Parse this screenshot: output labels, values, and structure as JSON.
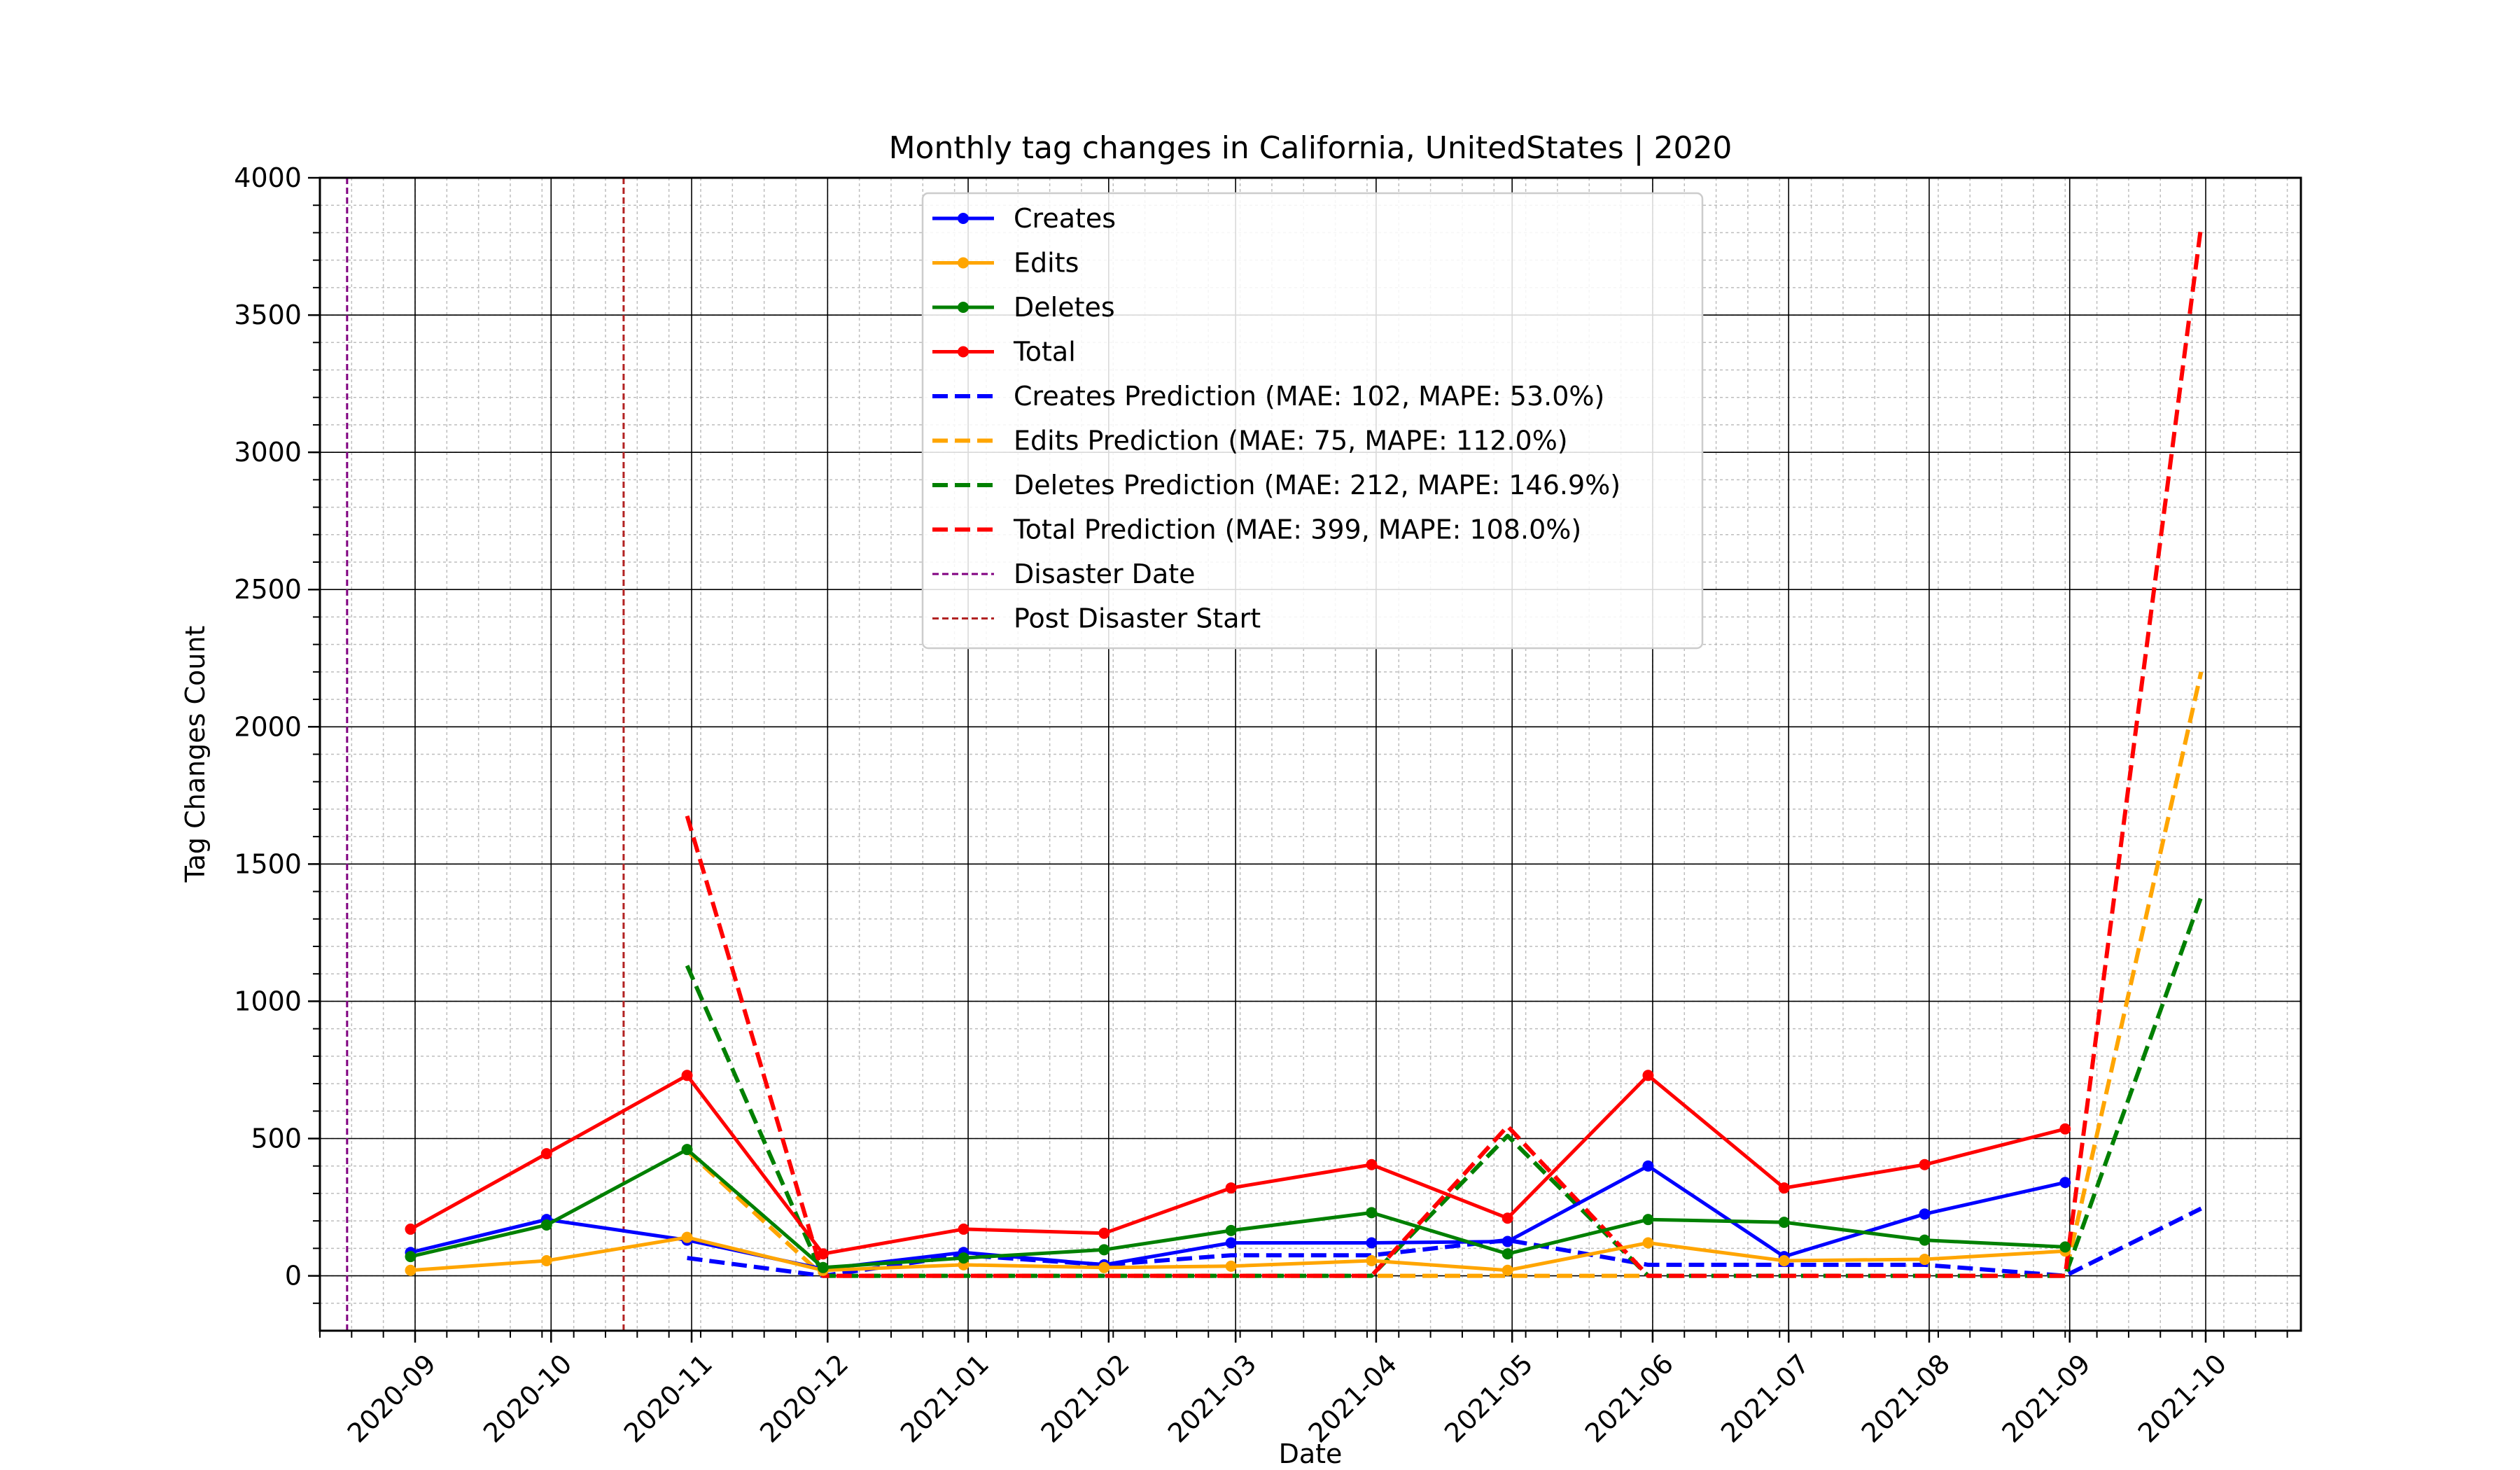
{
  "chart_data": {
    "type": "line",
    "title": "Monthly tag changes in California, UnitedStates | 2020",
    "xlabel": "Date",
    "ylabel": "Tag Changes Count",
    "xlim": [
      "2020-08-11",
      "2021-10-22"
    ],
    "ylim": [
      -200,
      4000
    ],
    "x_ticks": [
      "2020-09",
      "2020-10",
      "2020-11",
      "2020-12",
      "2021-01",
      "2021-02",
      "2021-03",
      "2021-04",
      "2021-05",
      "2021-06",
      "2021-07",
      "2021-08",
      "2021-09",
      "2021-10"
    ],
    "y_ticks": [
      "0",
      "500",
      "1000",
      "1500",
      "2000",
      "2500",
      "3000",
      "3500",
      "4000"
    ],
    "grid": true,
    "legend_position": "top-center",
    "series": [
      {
        "name": "Creates",
        "color": "#0000ff",
        "style": "solid-marker",
        "x": [
          "2020-08-31",
          "2020-09-30",
          "2020-10-31",
          "2020-11-30",
          "2020-12-31",
          "2021-01-31",
          "2021-02-28",
          "2021-03-31",
          "2021-04-30",
          "2021-05-31",
          "2021-06-30",
          "2021-07-31",
          "2021-08-31"
        ],
        "y": [
          85,
          205,
          130,
          25,
          85,
          40,
          120,
          120,
          125,
          400,
          70,
          225,
          340
        ]
      },
      {
        "name": "Edits",
        "color": "#ffa500",
        "style": "solid-marker",
        "x": [
          "2020-08-31",
          "2020-09-30",
          "2020-10-31",
          "2020-11-30",
          "2020-12-31",
          "2021-01-31",
          "2021-02-28",
          "2021-03-31",
          "2021-04-30",
          "2021-05-31",
          "2021-06-30",
          "2021-07-31",
          "2021-08-31"
        ],
        "y": [
          20,
          55,
          140,
          20,
          40,
          30,
          35,
          55,
          20,
          120,
          55,
          60,
          90
        ]
      },
      {
        "name": "Deletes",
        "color": "#008000",
        "style": "solid-marker",
        "x": [
          "2020-08-31",
          "2020-09-30",
          "2020-10-31",
          "2020-11-30",
          "2020-12-31",
          "2021-01-31",
          "2021-02-28",
          "2021-03-31",
          "2021-04-30",
          "2021-05-31",
          "2021-06-30",
          "2021-07-31",
          "2021-08-31"
        ],
        "y": [
          70,
          185,
          460,
          30,
          65,
          95,
          165,
          230,
          80,
          205,
          195,
          130,
          105
        ]
      },
      {
        "name": "Total",
        "color": "#ff0000",
        "style": "solid-marker",
        "x": [
          "2020-08-31",
          "2020-09-30",
          "2020-10-31",
          "2020-11-30",
          "2020-12-31",
          "2021-01-31",
          "2021-02-28",
          "2021-03-31",
          "2021-04-30",
          "2021-05-31",
          "2021-06-30",
          "2021-07-31",
          "2021-08-31"
        ],
        "y": [
          170,
          445,
          730,
          80,
          170,
          155,
          320,
          405,
          210,
          730,
          320,
          405,
          535
        ]
      },
      {
        "name": "Creates Prediction (MAE: 102, MAPE: 53.0%)",
        "color": "#0000ff",
        "style": "dashed",
        "x": [
          "2020-10-31",
          "2020-11-30",
          "2020-12-31",
          "2021-01-31",
          "2021-02-28",
          "2021-03-31",
          "2021-04-30",
          "2021-05-31",
          "2021-06-30",
          "2021-07-31",
          "2021-08-31",
          "2021-09-30"
        ],
        "y": [
          65,
          0,
          75,
          40,
          75,
          75,
          130,
          40,
          40,
          40,
          0,
          245
        ]
      },
      {
        "name": "Edits Prediction (MAE: 75, MAPE: 112.0%)",
        "color": "#ffa500",
        "style": "dashed",
        "x": [
          "2020-10-31",
          "2020-11-30",
          "2020-12-31",
          "2021-01-31",
          "2021-02-28",
          "2021-03-31",
          "2021-04-30",
          "2021-05-31",
          "2021-06-30",
          "2021-07-31",
          "2021-08-31",
          "2021-09-30"
        ],
        "y": [
          455,
          0,
          0,
          0,
          0,
          0,
          0,
          0,
          0,
          0,
          0,
          2200
        ]
      },
      {
        "name": "Deletes Prediction (MAE: 212, MAPE: 146.9%)",
        "color": "#008000",
        "style": "dashed",
        "x": [
          "2020-10-31",
          "2020-11-30",
          "2020-12-31",
          "2021-01-31",
          "2021-02-28",
          "2021-03-31",
          "2021-04-30",
          "2021-05-31",
          "2021-06-30",
          "2021-07-31",
          "2021-08-31",
          "2021-09-30"
        ],
        "y": [
          1130,
          0,
          0,
          0,
          0,
          0,
          510,
          0,
          0,
          0,
          0,
          1380
        ]
      },
      {
        "name": "Total Prediction (MAE: 399, MAPE: 108.0%)",
        "color": "#ff0000",
        "style": "dashed",
        "x": [
          "2020-10-31",
          "2020-11-30",
          "2020-12-31",
          "2021-01-31",
          "2021-02-28",
          "2021-03-31",
          "2021-04-30",
          "2021-05-31",
          "2021-06-30",
          "2021-07-31",
          "2021-08-31",
          "2021-09-30"
        ],
        "y": [
          1675,
          0,
          0,
          0,
          0,
          0,
          545,
          0,
          0,
          0,
          0,
          3825
        ]
      }
    ],
    "vlines": [
      {
        "name": "Disaster Date",
        "x": "2020-08-17",
        "color": "#800080"
      },
      {
        "name": "Post Disaster Start",
        "x": "2020-10-17",
        "color": "#b22222"
      }
    ]
  }
}
